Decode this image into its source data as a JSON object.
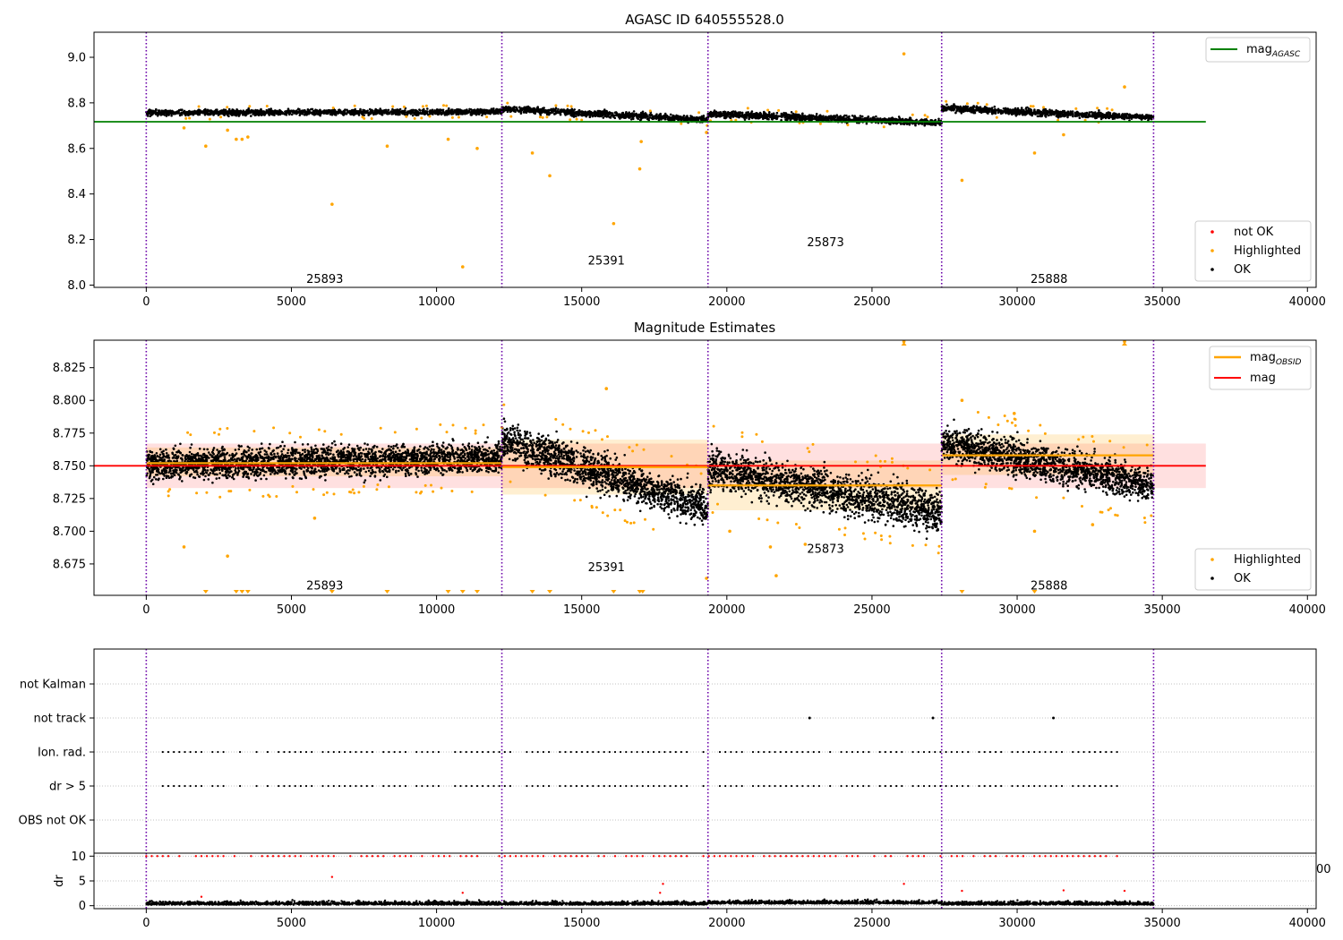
{
  "chart_data": [
    {
      "type": "scatter",
      "title": "AGASC ID 640555528.0",
      "xlabel": "",
      "ylabel": "",
      "xlim": [
        -1800,
        40300
      ],
      "ylim": [
        7.99,
        9.11
      ],
      "xticks": [
        0,
        5000,
        10000,
        15000,
        20000,
        25000,
        30000,
        35000,
        40000
      ],
      "yticks": [
        8.0,
        8.2,
        8.4,
        8.6,
        8.8,
        9.0
      ],
      "ytick_labels": [
        "8.0",
        "8.2",
        "8.4",
        "8.6",
        "8.8",
        "9.0"
      ],
      "obsid_boundaries": [
        0,
        12250,
        19350,
        27400,
        34700
      ],
      "obsids": [
        {
          "label": "25893",
          "x": 6150,
          "y": 8.03
        },
        {
          "label": "25391",
          "x": 15850,
          "y": 8.11
        },
        {
          "label": "25873",
          "x": 23400,
          "y": 8.19
        },
        {
          "label": "25888",
          "x": 31100,
          "y": 8.03
        }
      ],
      "lines": [
        {
          "name": "mag$_{AGASC}$",
          "label": "mag",
          "sub": "AGASC",
          "y": 8.717,
          "x": [
            -1800,
            36500
          ],
          "color": "#008000"
        }
      ],
      "segments": [
        {
          "x0": 0,
          "x1": 12250,
          "y0": 8.756,
          "y1": 8.761,
          "spread": 0.012
        },
        {
          "x0": 12250,
          "x1": 19350,
          "y0": 8.774,
          "y1": 8.726,
          "spread": 0.014
        },
        {
          "x0": 19350,
          "x1": 27400,
          "y0": 8.752,
          "y1": 8.713,
          "spread": 0.014
        },
        {
          "x0": 27400,
          "x1": 34700,
          "y0": 8.776,
          "y1": 8.735,
          "spread": 0.014
        }
      ],
      "highlighted_points": [
        [
          2050,
          8.61
        ],
        [
          2800,
          8.68
        ],
        [
          3100,
          8.64
        ],
        [
          3300,
          8.64
        ],
        [
          3500,
          8.65
        ],
        [
          1300,
          8.69
        ],
        [
          6400,
          8.355
        ],
        [
          8300,
          8.61
        ],
        [
          10400,
          8.64
        ],
        [
          10900,
          8.08
        ],
        [
          11400,
          8.6
        ],
        [
          13300,
          8.58
        ],
        [
          13900,
          8.48
        ],
        [
          16100,
          8.27
        ],
        [
          17050,
          8.63
        ],
        [
          17000,
          8.51
        ],
        [
          19300,
          8.67
        ],
        [
          26100,
          9.015
        ],
        [
          28100,
          8.46
        ],
        [
          30600,
          8.58
        ],
        [
          31600,
          8.66
        ],
        [
          33700,
          8.87
        ]
      ],
      "legend": [
        {
          "label": "not OK",
          "color": "#ff0000"
        },
        {
          "label": "Highlighted",
          "color": "#ffa500"
        },
        {
          "label": "OK",
          "color": "#000000"
        }
      ],
      "legend_position": "lower-right",
      "line_legend_position": "upper-right"
    },
    {
      "type": "scatter",
      "title": "Magnitude Estimates",
      "xlabel": "",
      "ylabel": "",
      "xlim": [
        -1800,
        40300
      ],
      "ylim": [
        8.651,
        8.846
      ],
      "xticks": [
        0,
        5000,
        10000,
        15000,
        20000,
        25000,
        30000,
        35000,
        40000
      ],
      "yticks": [
        8.675,
        8.7,
        8.725,
        8.75,
        8.775,
        8.8,
        8.825
      ],
      "ytick_labels": [
        "8.675",
        "8.700",
        "8.725",
        "8.750",
        "8.775",
        "8.800",
        "8.825"
      ],
      "obsid_boundaries": [
        0,
        12250,
        19350,
        27400,
        34700
      ],
      "obsids": [
        {
          "label": "25893",
          "x": 6150,
          "y": 8.659
        },
        {
          "label": "25391",
          "x": 15850,
          "y": 8.673
        },
        {
          "label": "25873",
          "x": 23400,
          "y": 8.687
        },
        {
          "label": "25888",
          "x": 31100,
          "y": 8.659
        }
      ],
      "mag": 8.75,
      "mag_band": [
        8.733,
        8.767
      ],
      "mag_obsid": [
        {
          "x0": 0,
          "x1": 12250,
          "y": 8.752,
          "band": [
            8.742,
            8.764
          ]
        },
        {
          "x0": 12250,
          "x1": 19350,
          "y": 8.749,
          "band": [
            8.728,
            8.77
          ]
        },
        {
          "x0": 19350,
          "x1": 27400,
          "y": 8.735,
          "band": [
            8.716,
            8.754
          ]
        },
        {
          "x0": 27400,
          "x1": 34700,
          "y": 8.758,
          "band": [
            8.743,
            8.774
          ]
        }
      ],
      "segments": [
        {
          "x0": 0,
          "x1": 12250,
          "y0": 8.751,
          "y1": 8.756,
          "spread": 0.011
        },
        {
          "x0": 12250,
          "x1": 19350,
          "y0": 8.77,
          "y1": 8.718,
          "spread": 0.014
        },
        {
          "x0": 19350,
          "x1": 27400,
          "y0": 8.748,
          "y1": 8.715,
          "spread": 0.015
        },
        {
          "x0": 27400,
          "x1": 34700,
          "y0": 8.768,
          "y1": 8.735,
          "spread": 0.013
        }
      ],
      "highlighted_points": [
        [
          1300,
          8.688
        ],
        [
          2800,
          8.681
        ],
        [
          5800,
          8.71
        ],
        [
          15850,
          8.809
        ],
        [
          19300,
          8.664
        ],
        [
          20100,
          8.7
        ],
        [
          21500,
          8.688
        ],
        [
          21700,
          8.666
        ],
        [
          22700,
          8.69
        ],
        [
          26100,
          8.845
        ],
        [
          33700,
          8.845
        ],
        [
          28100,
          8.8
        ],
        [
          29900,
          8.79
        ],
        [
          32600,
          8.705
        ],
        [
          30600,
          8.7
        ]
      ],
      "clipped_low_x": [
        2050,
        3100,
        3300,
        3500,
        6400,
        8300,
        10400,
        10900,
        11400,
        13300,
        13900,
        16100,
        17000,
        17100,
        28100,
        30600
      ],
      "clipped_high_x": [
        26100,
        33700
      ],
      "legend": [
        {
          "label": "Highlighted",
          "color": "#ffa500"
        },
        {
          "label": "OK",
          "color": "#000000"
        }
      ],
      "line_legend": [
        {
          "label": "mag",
          "sub": "OBSID",
          "color": "#ffa500"
        },
        {
          "label": "mag",
          "sub": "",
          "color": "#ff0000"
        }
      ],
      "legend_position": "lower-right",
      "line_legend_position": "upper-right"
    },
    {
      "type": "scatter",
      "title": "",
      "xlabel": "",
      "ylabel": "",
      "xlim": [
        -1800,
        40300
      ],
      "categories": [
        "not Kalman",
        "not track",
        "Ion. rad.",
        "dr > 5",
        "OBS not OK"
      ],
      "obsid_boundaries": [
        0,
        12250,
        19350,
        27400,
        34700
      ],
      "flag_rows": [
        {
          "name": "not Kalman",
          "x": []
        },
        {
          "name": "not track",
          "x": [
            22850,
            27100,
            31250
          ]
        },
        {
          "name": "Ion. rad.",
          "pattern": "periodic",
          "x_start": 0,
          "x_end": 33600,
          "step": 190
        },
        {
          "name": "dr > 5",
          "pattern": "periodic",
          "x_start": 0,
          "x_end": 33600,
          "step": 190
        },
        {
          "name": "OBS not OK",
          "x": []
        }
      ]
    },
    {
      "type": "scatter",
      "title": "",
      "xlabel": "",
      "ylabel": "dr",
      "xlim": [
        -1800,
        40300
      ],
      "ylim": [
        -0.6,
        10.6
      ],
      "xticks": [
        0,
        5000,
        10000,
        15000,
        20000,
        25000,
        30000,
        35000,
        40000
      ],
      "yticks": [
        0,
        5,
        10
      ],
      "ytick_labels": [
        "0",
        "5",
        "10"
      ],
      "obsid_boundaries": [
        0,
        12250,
        19350,
        27400,
        34700
      ],
      "clip_value": 10,
      "outlier_points": [
        [
          6400,
          5.8
        ],
        [
          10900,
          2.6
        ],
        [
          17700,
          2.6
        ],
        [
          17800,
          4.4
        ],
        [
          26100,
          4.4
        ],
        [
          28100,
          3.0
        ],
        [
          31600,
          3.1
        ],
        [
          33700,
          3.0
        ],
        [
          1900,
          1.8
        ]
      ],
      "baseline_level": 0.6,
      "stray_tick_text": "00"
    }
  ]
}
